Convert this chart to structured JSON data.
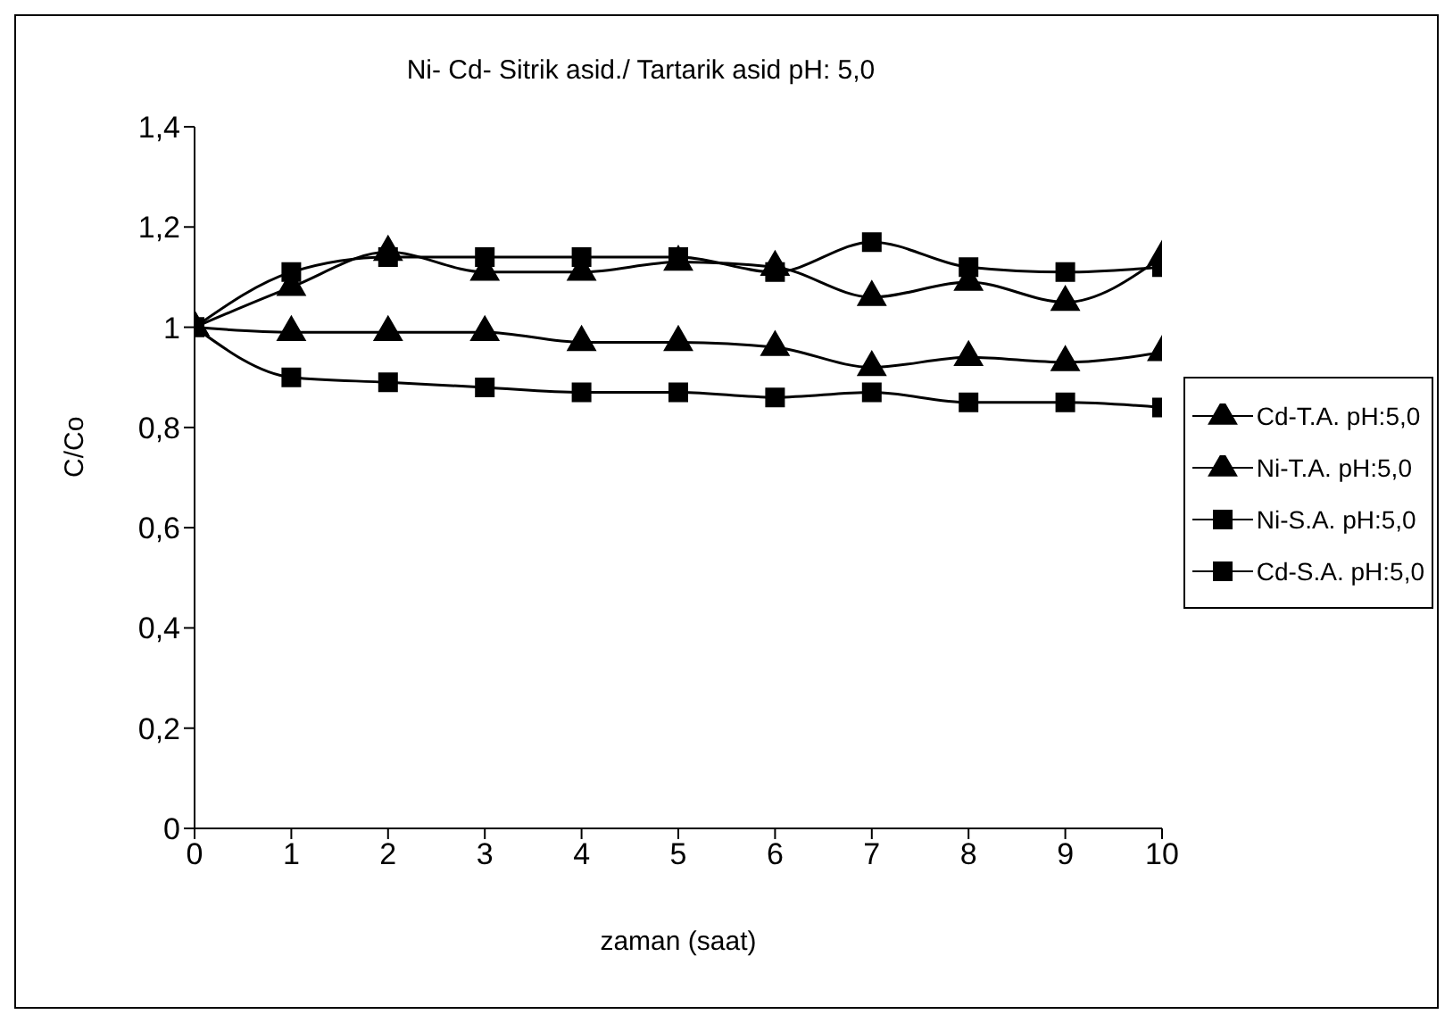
{
  "chart_data": {
    "type": "line",
    "title": "Ni- Cd- Sitrik asid./ Tartarik asid pH: 5,0",
    "xlabel": "zaman (saat)",
    "ylabel": "C/Co",
    "x": [
      0,
      1,
      2,
      3,
      4,
      5,
      6,
      7,
      8,
      9,
      10
    ],
    "series": [
      {
        "name": "Cd-T.A. pH:5,0",
        "color": "#000000",
        "marker": "triangle",
        "values": [
          1,
          0.99,
          0.99,
          0.99,
          0.97,
          0.97,
          0.96,
          0.92,
          0.94,
          0.93,
          0.95
        ]
      },
      {
        "name": "Ni-T.A. pH:5,0",
        "color": "#000000",
        "marker": "triangle",
        "values": [
          1,
          1.08,
          1.15,
          1.11,
          1.11,
          1.13,
          1.12,
          1.06,
          1.09,
          1.05,
          1.14
        ]
      },
      {
        "name": "Ni-S.A. pH:5,0",
        "color": "#000000",
        "marker": "square",
        "values": [
          1,
          1.11,
          1.14,
          1.14,
          1.14,
          1.14,
          1.11,
          1.17,
          1.12,
          1.11,
          1.12
        ]
      },
      {
        "name": "Cd-S.A. pH:5,0",
        "color": "#000000",
        "marker": "square",
        "values": [
          1,
          0.9,
          0.89,
          0.88,
          0.87,
          0.87,
          0.86,
          0.87,
          0.85,
          0.85,
          0.84
        ]
      }
    ],
    "xlim": [
      0,
      10
    ],
    "xticks": [
      0,
      1,
      2,
      3,
      4,
      5,
      6,
      7,
      8,
      9,
      10
    ],
    "ylim": [
      0,
      1.4
    ],
    "yticks": [
      0,
      {
        "value": 0.2,
        "label": "0,2"
      },
      {
        "value": 0.4,
        "label": "0,4"
      },
      {
        "value": 0.6,
        "label": "0,6"
      },
      {
        "value": 0.8,
        "label": "0,8"
      },
      1,
      {
        "value": 1.2,
        "label": "1,2"
      },
      {
        "value": 1.4,
        "label": "1,4"
      }
    ],
    "grid": false,
    "legend": "right",
    "line_style": "solid"
  }
}
